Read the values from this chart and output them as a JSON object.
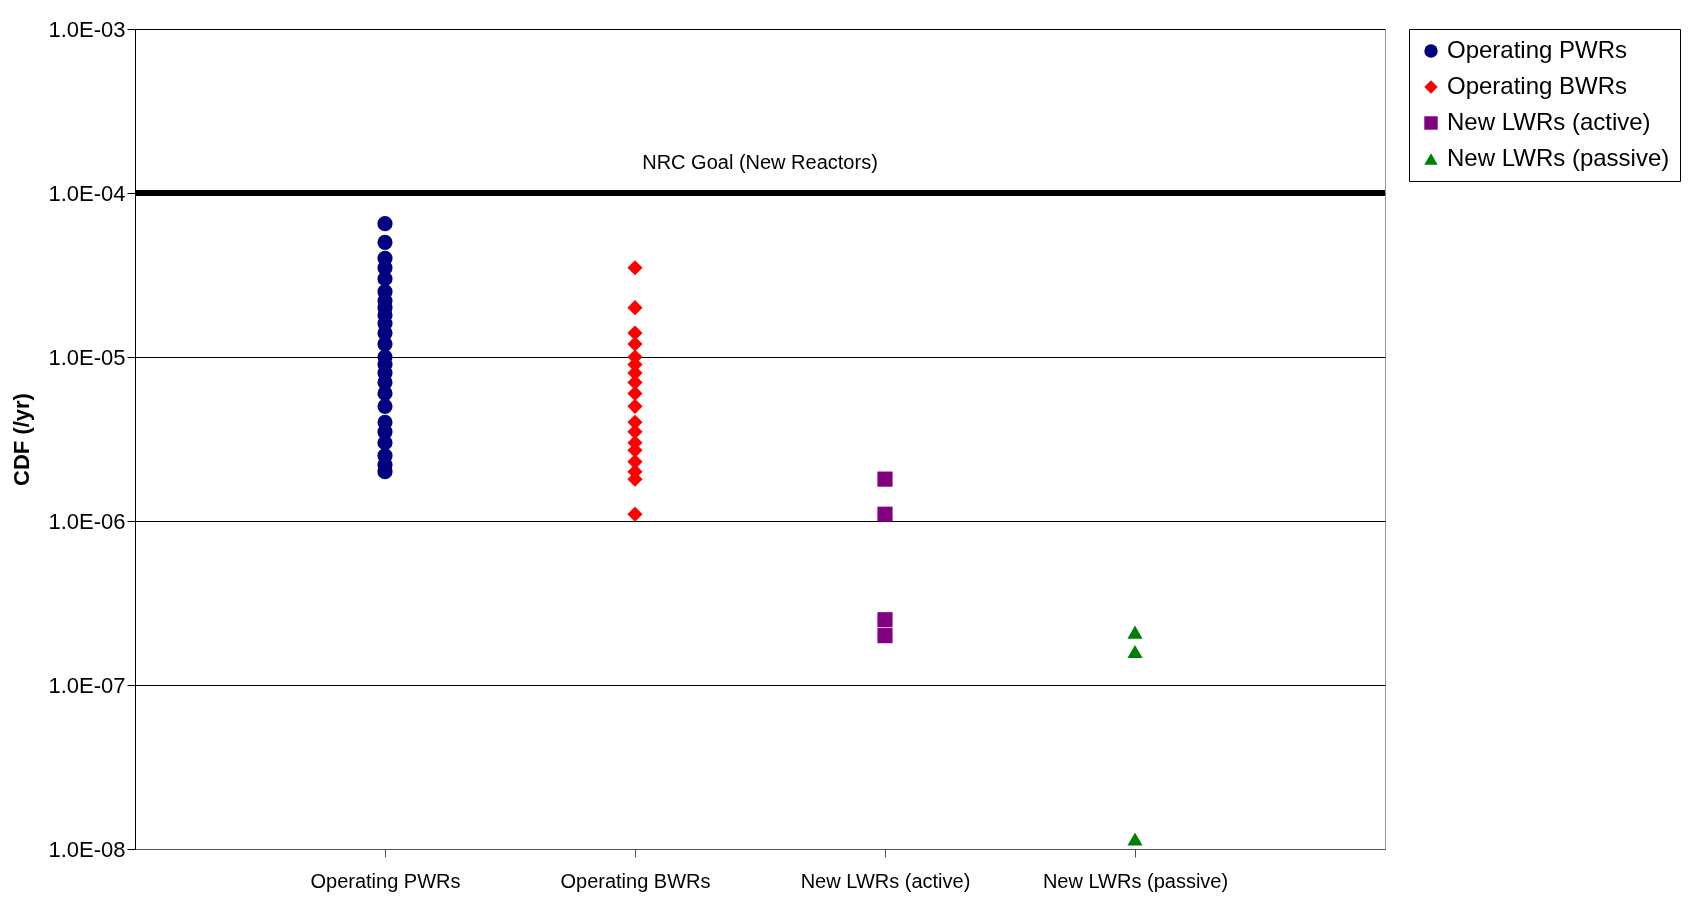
{
  "chart_data": {
    "type": "scatter",
    "ylabel": "CDF (/yr)",
    "log": true,
    "grid": "y",
    "legend": "right",
    "categories": [
      "Operating PWRs",
      "Operating BWRs",
      "New LWRs (active)",
      "New LWRs (passive)"
    ],
    "ylim": [
      1e-08,
      0.001
    ],
    "yticks": [
      {
        "value": 1e-08,
        "label": "1.0E-08"
      },
      {
        "value": 1e-07,
        "label": "1.0E-07"
      },
      {
        "value": 1e-06,
        "label": "1.0E-06"
      },
      {
        "value": 1e-05,
        "label": "1.0E-05"
      },
      {
        "value": 0.0001,
        "label": "1.0E-04"
      },
      {
        "value": 0.001,
        "label": "1.0E-03"
      }
    ],
    "series": [
      {
        "name": "Operating PWRs",
        "color": "#000080",
        "marker": "circle",
        "x": [
          "Operating PWRs",
          "Operating PWRs",
          "Operating PWRs",
          "Operating PWRs",
          "Operating PWRs",
          "Operating PWRs",
          "Operating PWRs",
          "Operating PWRs",
          "Operating PWRs",
          "Operating PWRs",
          "Operating PWRs",
          "Operating PWRs",
          "Operating PWRs",
          "Operating PWRs",
          "Operating PWRs",
          "Operating PWRs",
          "Operating PWRs",
          "Operating PWRs",
          "Operating PWRs",
          "Operating PWRs",
          "Operating PWRs",
          "Operating PWRs",
          "Operating PWRs",
          "Operating PWRs"
        ],
        "values": [
          6.5e-05,
          5e-05,
          4e-05,
          3.5e-05,
          3e-05,
          2.5e-05,
          2.2e-05,
          2e-05,
          1.8e-05,
          1.6e-05,
          1.4e-05,
          1.2e-05,
          1e-05,
          9e-06,
          8e-06,
          7e-06,
          6e-06,
          5e-06,
          4e-06,
          3.5e-06,
          3e-06,
          2.5e-06,
          2.2e-06,
          2e-06
        ]
      },
      {
        "name": "Operating BWRs",
        "color": "#ff0000",
        "marker": "diamond",
        "x": [
          "Operating BWRs",
          "Operating BWRs",
          "Operating BWRs",
          "Operating BWRs",
          "Operating BWRs",
          "Operating BWRs",
          "Operating BWRs",
          "Operating BWRs",
          "Operating BWRs",
          "Operating BWRs",
          "Operating BWRs",
          "Operating BWRs",
          "Operating BWRs",
          "Operating BWRs",
          "Operating BWRs",
          "Operating BWRs",
          "Operating BWRs",
          "Operating BWRs"
        ],
        "values": [
          3.5e-05,
          2e-05,
          1.4e-05,
          1.2e-05,
          1e-05,
          9e-06,
          8e-06,
          7e-06,
          6e-06,
          5e-06,
          4e-06,
          3.5e-06,
          3e-06,
          2.7e-06,
          2.3e-06,
          2e-06,
          1.8e-06,
          1.1e-06
        ]
      },
      {
        "name": "New LWRs (active)",
        "color": "#800080",
        "marker": "square",
        "x": [
          "New LWRs (active)",
          "New LWRs (active)",
          "New LWRs (active)",
          "New LWRs (active)"
        ],
        "values": [
          1.8e-06,
          1.1e-06,
          2.5e-07,
          2e-07
        ]
      },
      {
        "name": "New LWRs (passive)",
        "color": "#008000",
        "marker": "triangle",
        "x": [
          "New LWRs (passive)",
          "New LWRs (passive)",
          "New LWRs (passive)"
        ],
        "values": [
          2.1e-07,
          1.6e-07,
          1.15e-08
        ]
      }
    ],
    "ref_lines": [
      {
        "axis": "y",
        "value": 0.0001,
        "label": "NRC Goal (New Reactors)",
        "color": "#000000"
      }
    ]
  }
}
